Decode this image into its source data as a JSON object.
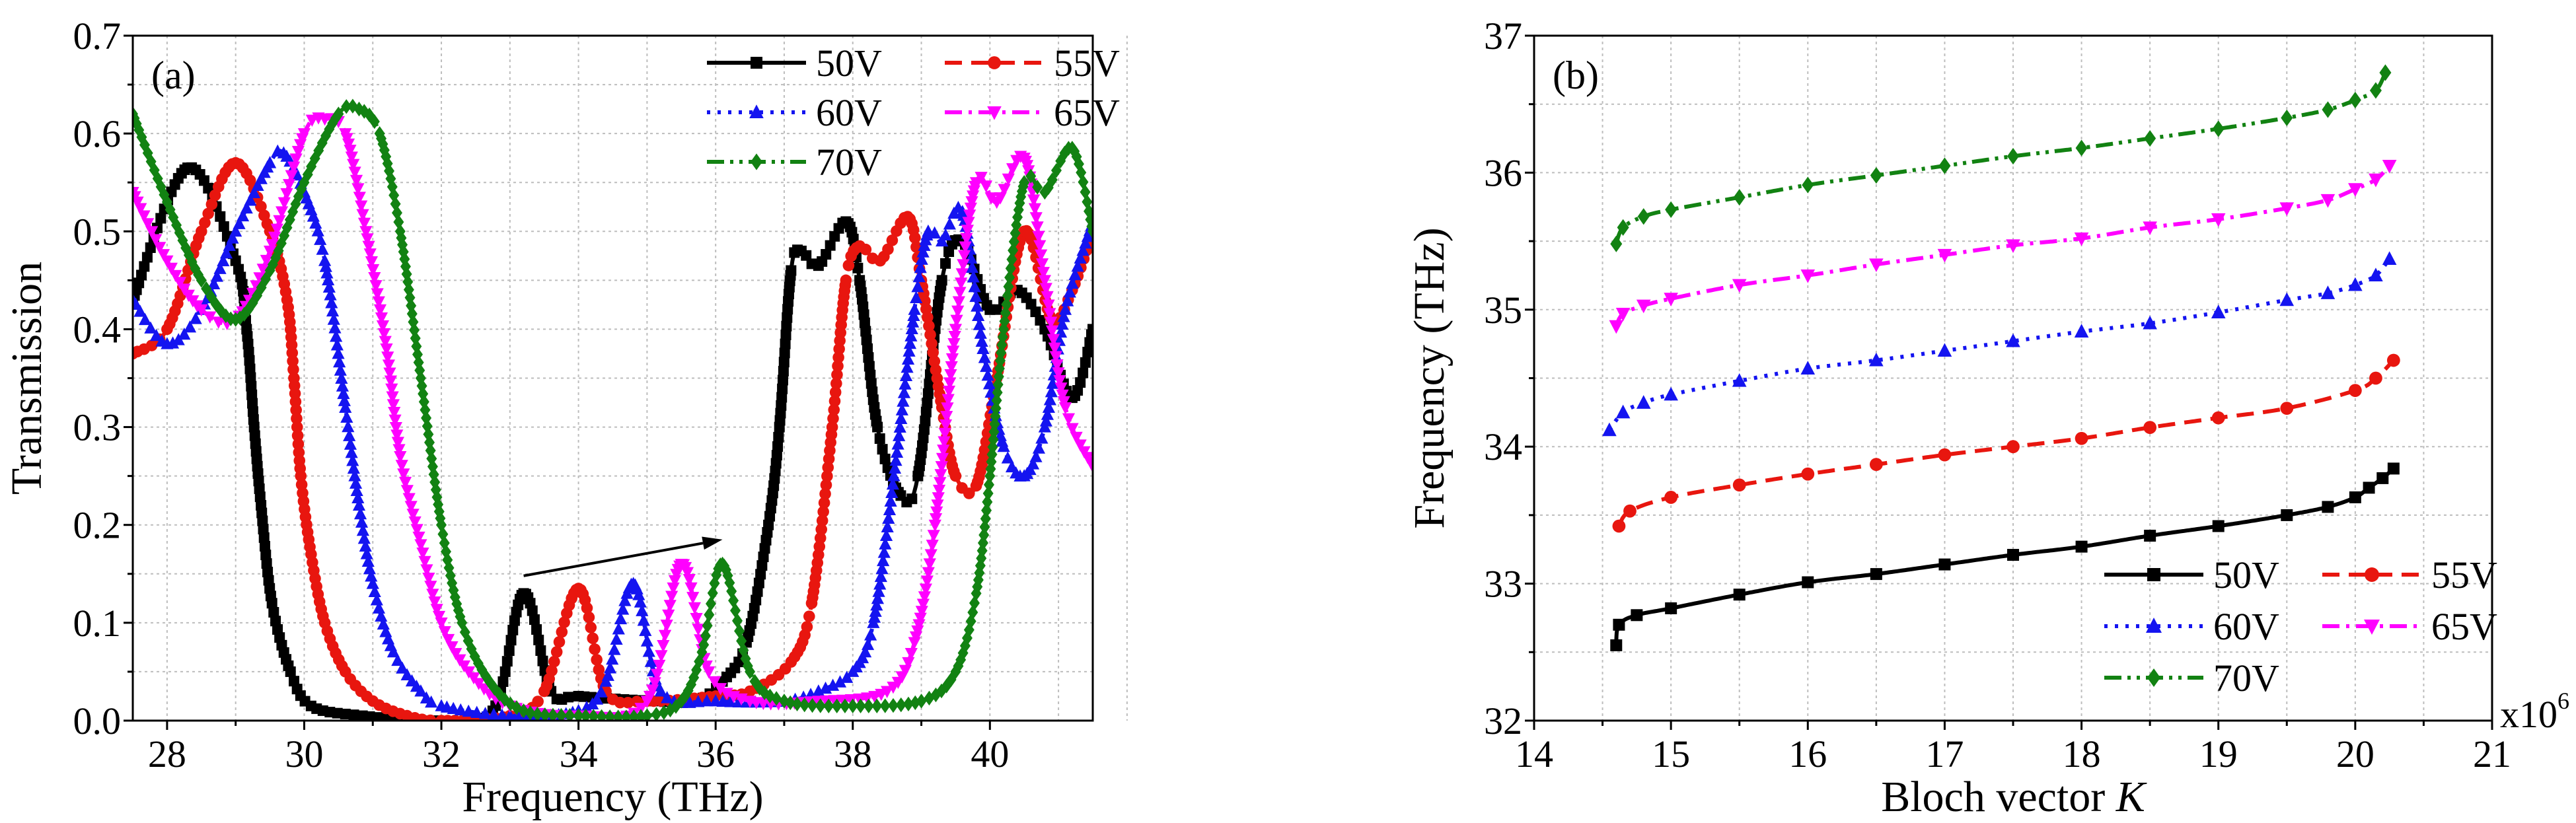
{
  "chart_data": [
    {
      "type": "line",
      "panel_label": "(a)",
      "xlabel": "Frequency (THz)",
      "ylabel": "Transmission",
      "xlim": [
        27.5,
        41.5
      ],
      "ylim": [
        0,
        0.7
      ],
      "xticks": [
        "28",
        "30",
        "32",
        "34",
        "36",
        "38",
        "40"
      ],
      "xtick_values": [
        28,
        30,
        32,
        34,
        36,
        38,
        40
      ],
      "yticks": [
        "0.0",
        "0.1",
        "0.2",
        "0.3",
        "0.4",
        "0.5",
        "0.6",
        "0.7"
      ],
      "ytick_values": [
        0,
        0.1,
        0.2,
        0.3,
        0.4,
        0.5,
        0.6,
        0.7
      ],
      "grid": true,
      "legend_position": "top-right",
      "annotation": {
        "type": "arrow",
        "from": [
          33.2,
          0.148
        ],
        "to": [
          36.1,
          0.185
        ]
      },
      "series": [
        {
          "name": "50V",
          "color": "#000000",
          "marker": "square",
          "dash": "solid",
          "x": [
            27.5,
            28.3,
            29.0,
            29.16,
            29.27,
            29.37,
            29.53,
            29.8,
            30.1,
            30.85,
            31.9,
            32.75,
            33.2,
            33.6,
            34.0,
            35.1,
            35.7,
            36.1,
            36.45,
            36.77,
            36.93,
            37.1,
            37.25,
            37.5,
            37.9,
            38.1,
            38.36,
            38.7,
            38.95,
            39.3,
            39.6,
            40.0,
            40.4,
            40.8,
            41.2,
            41.5
          ],
          "y": [
            0.43,
            0.565,
            0.47,
            0.4,
            0.3,
            0.22,
            0.12,
            0.05,
            0.015,
            0.005,
            0.0,
            0.01,
            0.13,
            0.03,
            0.025,
            0.02,
            0.02,
            0.04,
            0.08,
            0.2,
            0.3,
            0.46,
            0.48,
            0.465,
            0.51,
            0.45,
            0.3,
            0.23,
            0.25,
            0.45,
            0.49,
            0.42,
            0.44,
            0.4,
            0.33,
            0.4
          ]
        },
        {
          "name": "55V",
          "color": "#e8160f",
          "marker": "circle",
          "dash": "dash",
          "x": [
            27.5,
            28.0,
            28.5,
            29.0,
            29.5,
            29.75,
            29.85,
            29.95,
            30.1,
            30.3,
            30.6,
            31.0,
            31.5,
            32.0,
            33.0,
            33.5,
            34.0,
            34.4,
            35.0,
            36.0,
            36.5,
            37.1,
            37.4,
            37.7,
            37.9,
            38.1,
            38.4,
            38.8,
            39.0,
            39.3,
            39.5,
            39.8,
            40.1,
            40.5,
            40.9,
            41.2,
            41.5
          ],
          "y": [
            0.375,
            0.4,
            0.5,
            0.57,
            0.5,
            0.43,
            0.35,
            0.25,
            0.17,
            0.1,
            0.05,
            0.02,
            0.005,
            0.0,
            0.005,
            0.03,
            0.135,
            0.03,
            0.02,
            0.025,
            0.03,
            0.06,
            0.12,
            0.3,
            0.45,
            0.485,
            0.47,
            0.515,
            0.45,
            0.32,
            0.25,
            0.24,
            0.35,
            0.5,
            0.41,
            0.44,
            0.5
          ]
        },
        {
          "name": "60V",
          "color": "#1414f0",
          "marker": "triangle-up",
          "dash": "dot",
          "x": [
            27.5,
            28.0,
            28.5,
            29.0,
            29.5,
            29.7,
            30.0,
            30.3,
            30.6,
            30.8,
            31.0,
            31.3,
            31.7,
            32.0,
            33.0,
            34.0,
            34.4,
            34.8,
            35.2,
            36.0,
            37.0,
            37.5,
            38.0,
            38.3,
            38.6,
            38.9,
            39.1,
            39.3,
            39.6,
            39.9,
            40.2,
            40.5,
            40.8,
            41.1,
            41.5
          ],
          "y": [
            0.43,
            0.385,
            0.42,
            0.5,
            0.57,
            0.58,
            0.54,
            0.47,
            0.32,
            0.22,
            0.14,
            0.07,
            0.03,
            0.015,
            0.005,
            0.01,
            0.04,
            0.14,
            0.03,
            0.02,
            0.02,
            0.03,
            0.05,
            0.1,
            0.25,
            0.42,
            0.5,
            0.49,
            0.52,
            0.38,
            0.28,
            0.25,
            0.3,
            0.42,
            0.51
          ]
        },
        {
          "name": "65V",
          "color": "#ff00ff",
          "marker": "triangle-down",
          "dash": "dashdot",
          "x": [
            27.5,
            28.0,
            28.5,
            29.0,
            29.5,
            30.0,
            30.3,
            30.6,
            30.9,
            31.2,
            31.4,
            31.7,
            32.0,
            32.4,
            33.0,
            34.0,
            35.0,
            35.5,
            35.9,
            36.5,
            37.5,
            38.5,
            38.9,
            39.2,
            39.5,
            39.8,
            40.1,
            40.5,
            40.8,
            41.1,
            41.5
          ],
          "y": [
            0.54,
            0.47,
            0.42,
            0.41,
            0.48,
            0.6,
            0.615,
            0.6,
            0.5,
            0.38,
            0.27,
            0.18,
            0.1,
            0.05,
            0.015,
            0.005,
            0.02,
            0.16,
            0.05,
            0.02,
            0.02,
            0.03,
            0.08,
            0.2,
            0.4,
            0.55,
            0.53,
            0.575,
            0.45,
            0.32,
            0.26
          ]
        },
        {
          "name": "70V",
          "color": "#128212",
          "marker": "diamond",
          "dash": "dashdotdot",
          "x": [
            27.5,
            28.0,
            28.5,
            29.0,
            29.5,
            30.0,
            30.5,
            30.8,
            31.1,
            31.4,
            31.7,
            32.0,
            32.3,
            32.7,
            33.2,
            34.0,
            35.0,
            35.5,
            35.8,
            36.1,
            36.5,
            37.0,
            38.0,
            39.0,
            39.5,
            39.8,
            40.0,
            40.2,
            40.5,
            40.8,
            41.2,
            41.5
          ],
          "y": [
            0.62,
            0.53,
            0.45,
            0.41,
            0.46,
            0.55,
            0.62,
            0.625,
            0.6,
            0.5,
            0.35,
            0.2,
            0.1,
            0.04,
            0.01,
            0.005,
            0.005,
            0.02,
            0.07,
            0.16,
            0.05,
            0.02,
            0.015,
            0.02,
            0.05,
            0.13,
            0.25,
            0.4,
            0.55,
            0.54,
            0.585,
            0.5
          ]
        }
      ]
    },
    {
      "type": "line",
      "panel_label": "(b)",
      "xlabel": "Bloch vector",
      "xlabel_var": "K",
      "x_multiplier_base": "x10",
      "x_multiplier_exp": "6",
      "ylabel": "Frequency (THz)",
      "xlim": [
        14,
        21
      ],
      "ylim": [
        32,
        37
      ],
      "xticks": [
        "14",
        "15",
        "16",
        "17",
        "18",
        "19",
        "20",
        "21"
      ],
      "xtick_values": [
        14,
        15,
        16,
        17,
        18,
        19,
        20,
        21
      ],
      "yticks": [
        "32",
        "33",
        "34",
        "35",
        "36",
        "37"
      ],
      "ytick_values": [
        32,
        33,
        34,
        35,
        36,
        37
      ],
      "grid": true,
      "legend_position": "bottom-right",
      "series": [
        {
          "name": "50V",
          "color": "#000000",
          "marker": "square",
          "dash": "solid",
          "x": [
            14.6,
            14.62,
            14.75,
            15.0,
            15.5,
            16.0,
            16.5,
            17.0,
            17.5,
            18.0,
            18.5,
            19.0,
            19.5,
            19.8,
            20.0,
            20.1,
            20.2,
            20.28
          ],
          "y": [
            32.55,
            32.7,
            32.77,
            32.82,
            32.92,
            33.01,
            33.07,
            33.14,
            33.21,
            33.27,
            33.35,
            33.42,
            33.5,
            33.56,
            33.63,
            33.7,
            33.77,
            33.84
          ]
        },
        {
          "name": "55V",
          "color": "#e8160f",
          "marker": "circle",
          "dash": "dash",
          "x": [
            14.62,
            14.7,
            15.0,
            15.5,
            16.0,
            16.5,
            17.0,
            17.5,
            18.0,
            18.5,
            19.0,
            19.5,
            20.0,
            20.15,
            20.28
          ],
          "y": [
            33.42,
            33.53,
            33.63,
            33.72,
            33.8,
            33.87,
            33.94,
            34.0,
            34.06,
            34.14,
            34.21,
            34.28,
            34.41,
            34.5,
            34.63
          ]
        },
        {
          "name": "60V",
          "color": "#1414f0",
          "marker": "triangle-up",
          "dash": "dot",
          "x": [
            14.55,
            14.65,
            14.8,
            15.0,
            15.5,
            16.0,
            16.5,
            17.0,
            17.5,
            18.0,
            18.5,
            19.0,
            19.5,
            19.8,
            20.0,
            20.15,
            20.25
          ],
          "y": [
            34.12,
            34.25,
            34.32,
            34.38,
            34.48,
            34.57,
            34.63,
            34.7,
            34.77,
            34.84,
            34.9,
            34.98,
            35.07,
            35.12,
            35.18,
            35.25,
            35.37
          ]
        },
        {
          "name": "65V",
          "color": "#ff00ff",
          "marker": "triangle-down",
          "dash": "dashdot",
          "x": [
            14.6,
            14.65,
            14.8,
            15.0,
            15.5,
            16.0,
            16.5,
            17.0,
            17.5,
            18.0,
            18.5,
            19.0,
            19.5,
            19.8,
            20.0,
            20.15,
            20.25
          ],
          "y": [
            34.88,
            34.97,
            35.03,
            35.08,
            35.18,
            35.25,
            35.33,
            35.4,
            35.47,
            35.52,
            35.6,
            35.66,
            35.74,
            35.8,
            35.88,
            35.95,
            36.05
          ]
        },
        {
          "name": "70V",
          "color": "#128212",
          "marker": "diamond",
          "dash": "dashdotdot",
          "x": [
            14.6,
            14.65,
            14.8,
            15.0,
            15.5,
            16.0,
            16.5,
            17.0,
            17.5,
            18.0,
            18.5,
            19.0,
            19.5,
            19.8,
            20.0,
            20.15,
            20.22
          ],
          "y": [
            35.48,
            35.6,
            35.68,
            35.73,
            35.82,
            35.91,
            35.98,
            36.05,
            36.12,
            36.18,
            36.25,
            36.32,
            36.4,
            36.46,
            36.53,
            36.6,
            36.73
          ]
        }
      ]
    }
  ]
}
